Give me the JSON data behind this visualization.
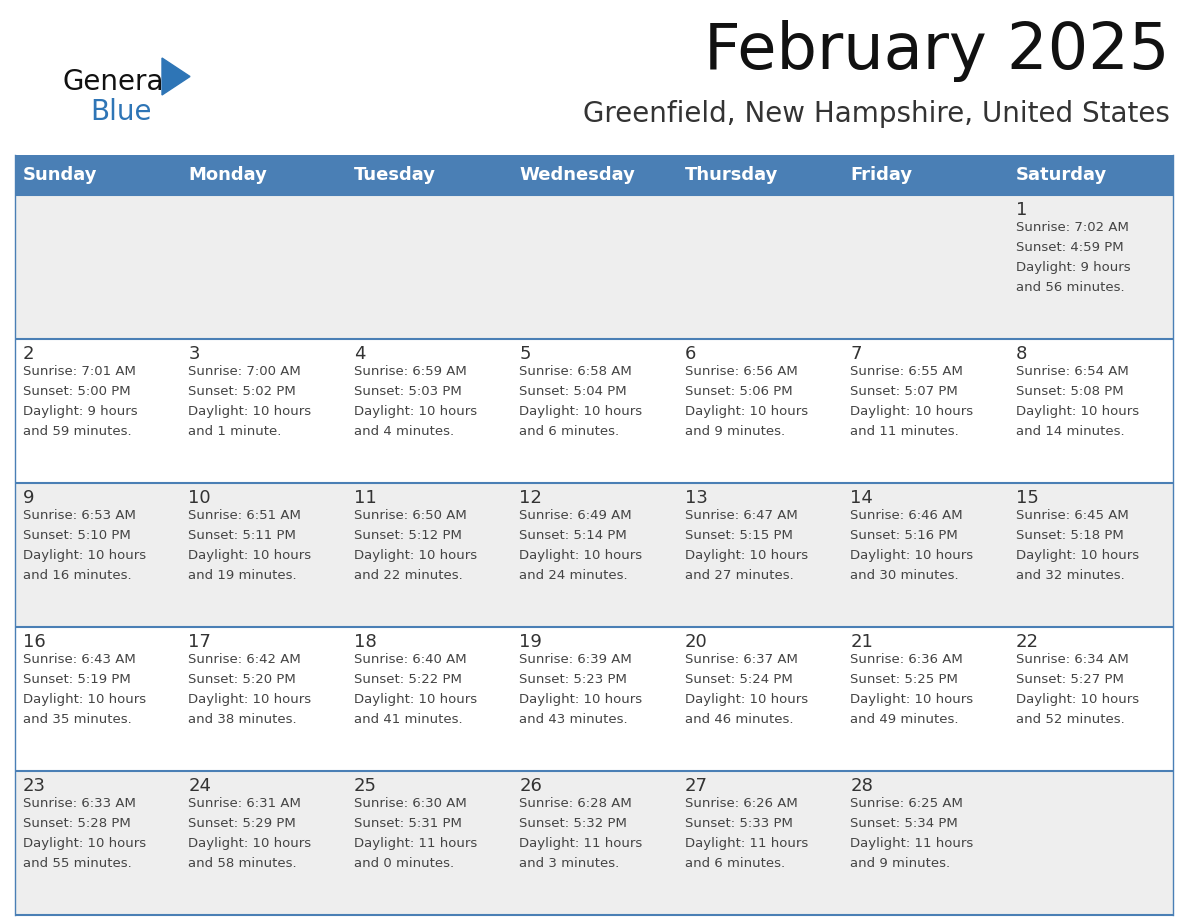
{
  "title": "February 2025",
  "subtitle": "Greenfield, New Hampshire, United States",
  "days_of_week": [
    "Sunday",
    "Monday",
    "Tuesday",
    "Wednesday",
    "Thursday",
    "Friday",
    "Saturday"
  ],
  "header_bg": "#4A7FB5",
  "header_text_color": "#FFFFFF",
  "cell_bg_row0": "#EFEFEF",
  "cell_bg_row1": "#FFFFFF",
  "cell_bg_row2": "#EFEFEF",
  "cell_bg_row3": "#FFFFFF",
  "cell_bg_row4": "#EFEFEF",
  "cell_border_color": "#4A7FB5",
  "outer_border_color": "#4A7FB5",
  "day_num_color": "#333333",
  "info_text_color": "#444444",
  "title_color": "#111111",
  "subtitle_color": "#333333",
  "logo_general_color": "#111111",
  "logo_blue_color": "#2E75B6",
  "calendar_data": [
    {
      "day": 1,
      "col": 6,
      "row": 0,
      "sunrise": "7:02 AM",
      "sunset": "4:59 PM",
      "daylight_line1": "Daylight: 9 hours",
      "daylight_line2": "and 56 minutes."
    },
    {
      "day": 2,
      "col": 0,
      "row": 1,
      "sunrise": "7:01 AM",
      "sunset": "5:00 PM",
      "daylight_line1": "Daylight: 9 hours",
      "daylight_line2": "and 59 minutes."
    },
    {
      "day": 3,
      "col": 1,
      "row": 1,
      "sunrise": "7:00 AM",
      "sunset": "5:02 PM",
      "daylight_line1": "Daylight: 10 hours",
      "daylight_line2": "and 1 minute."
    },
    {
      "day": 4,
      "col": 2,
      "row": 1,
      "sunrise": "6:59 AM",
      "sunset": "5:03 PM",
      "daylight_line1": "Daylight: 10 hours",
      "daylight_line2": "and 4 minutes."
    },
    {
      "day": 5,
      "col": 3,
      "row": 1,
      "sunrise": "6:58 AM",
      "sunset": "5:04 PM",
      "daylight_line1": "Daylight: 10 hours",
      "daylight_line2": "and 6 minutes."
    },
    {
      "day": 6,
      "col": 4,
      "row": 1,
      "sunrise": "6:56 AM",
      "sunset": "5:06 PM",
      "daylight_line1": "Daylight: 10 hours",
      "daylight_line2": "and 9 minutes."
    },
    {
      "day": 7,
      "col": 5,
      "row": 1,
      "sunrise": "6:55 AM",
      "sunset": "5:07 PM",
      "daylight_line1": "Daylight: 10 hours",
      "daylight_line2": "and 11 minutes."
    },
    {
      "day": 8,
      "col": 6,
      "row": 1,
      "sunrise": "6:54 AM",
      "sunset": "5:08 PM",
      "daylight_line1": "Daylight: 10 hours",
      "daylight_line2": "and 14 minutes."
    },
    {
      "day": 9,
      "col": 0,
      "row": 2,
      "sunrise": "6:53 AM",
      "sunset": "5:10 PM",
      "daylight_line1": "Daylight: 10 hours",
      "daylight_line2": "and 16 minutes."
    },
    {
      "day": 10,
      "col": 1,
      "row": 2,
      "sunrise": "6:51 AM",
      "sunset": "5:11 PM",
      "daylight_line1": "Daylight: 10 hours",
      "daylight_line2": "and 19 minutes."
    },
    {
      "day": 11,
      "col": 2,
      "row": 2,
      "sunrise": "6:50 AM",
      "sunset": "5:12 PM",
      "daylight_line1": "Daylight: 10 hours",
      "daylight_line2": "and 22 minutes."
    },
    {
      "day": 12,
      "col": 3,
      "row": 2,
      "sunrise": "6:49 AM",
      "sunset": "5:14 PM",
      "daylight_line1": "Daylight: 10 hours",
      "daylight_line2": "and 24 minutes."
    },
    {
      "day": 13,
      "col": 4,
      "row": 2,
      "sunrise": "6:47 AM",
      "sunset": "5:15 PM",
      "daylight_line1": "Daylight: 10 hours",
      "daylight_line2": "and 27 minutes."
    },
    {
      "day": 14,
      "col": 5,
      "row": 2,
      "sunrise": "6:46 AM",
      "sunset": "5:16 PM",
      "daylight_line1": "Daylight: 10 hours",
      "daylight_line2": "and 30 minutes."
    },
    {
      "day": 15,
      "col": 6,
      "row": 2,
      "sunrise": "6:45 AM",
      "sunset": "5:18 PM",
      "daylight_line1": "Daylight: 10 hours",
      "daylight_line2": "and 32 minutes."
    },
    {
      "day": 16,
      "col": 0,
      "row": 3,
      "sunrise": "6:43 AM",
      "sunset": "5:19 PM",
      "daylight_line1": "Daylight: 10 hours",
      "daylight_line2": "and 35 minutes."
    },
    {
      "day": 17,
      "col": 1,
      "row": 3,
      "sunrise": "6:42 AM",
      "sunset": "5:20 PM",
      "daylight_line1": "Daylight: 10 hours",
      "daylight_line2": "and 38 minutes."
    },
    {
      "day": 18,
      "col": 2,
      "row": 3,
      "sunrise": "6:40 AM",
      "sunset": "5:22 PM",
      "daylight_line1": "Daylight: 10 hours",
      "daylight_line2": "and 41 minutes."
    },
    {
      "day": 19,
      "col": 3,
      "row": 3,
      "sunrise": "6:39 AM",
      "sunset": "5:23 PM",
      "daylight_line1": "Daylight: 10 hours",
      "daylight_line2": "and 43 minutes."
    },
    {
      "day": 20,
      "col": 4,
      "row": 3,
      "sunrise": "6:37 AM",
      "sunset": "5:24 PM",
      "daylight_line1": "Daylight: 10 hours",
      "daylight_line2": "and 46 minutes."
    },
    {
      "day": 21,
      "col": 5,
      "row": 3,
      "sunrise": "6:36 AM",
      "sunset": "5:25 PM",
      "daylight_line1": "Daylight: 10 hours",
      "daylight_line2": "and 49 minutes."
    },
    {
      "day": 22,
      "col": 6,
      "row": 3,
      "sunrise": "6:34 AM",
      "sunset": "5:27 PM",
      "daylight_line1": "Daylight: 10 hours",
      "daylight_line2": "and 52 minutes."
    },
    {
      "day": 23,
      "col": 0,
      "row": 4,
      "sunrise": "6:33 AM",
      "sunset": "5:28 PM",
      "daylight_line1": "Daylight: 10 hours",
      "daylight_line2": "and 55 minutes."
    },
    {
      "day": 24,
      "col": 1,
      "row": 4,
      "sunrise": "6:31 AM",
      "sunset": "5:29 PM",
      "daylight_line1": "Daylight: 10 hours",
      "daylight_line2": "and 58 minutes."
    },
    {
      "day": 25,
      "col": 2,
      "row": 4,
      "sunrise": "6:30 AM",
      "sunset": "5:31 PM",
      "daylight_line1": "Daylight: 11 hours",
      "daylight_line2": "and 0 minutes."
    },
    {
      "day": 26,
      "col": 3,
      "row": 4,
      "sunrise": "6:28 AM",
      "sunset": "5:32 PM",
      "daylight_line1": "Daylight: 11 hours",
      "daylight_line2": "and 3 minutes."
    },
    {
      "day": 27,
      "col": 4,
      "row": 4,
      "sunrise": "6:26 AM",
      "sunset": "5:33 PM",
      "daylight_line1": "Daylight: 11 hours",
      "daylight_line2": "and 6 minutes."
    },
    {
      "day": 28,
      "col": 5,
      "row": 4,
      "sunrise": "6:25 AM",
      "sunset": "5:34 PM",
      "daylight_line1": "Daylight: 11 hours",
      "daylight_line2": "and 9 minutes."
    }
  ],
  "row_bg_colors": [
    "#EEEEEE",
    "#FFFFFF",
    "#EEEEEE",
    "#FFFFFF",
    "#EEEEEE"
  ]
}
